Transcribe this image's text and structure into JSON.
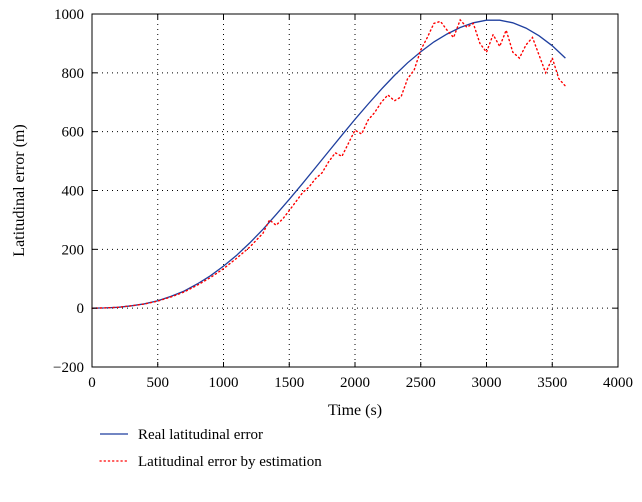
{
  "chart_data": {
    "type": "line",
    "xlabel": "Time (s)",
    "ylabel": "Latitudinal error (m)",
    "xlim": [
      0,
      4000
    ],
    "ylim": [
      -200,
      1000
    ],
    "x_ticks": [
      "0",
      "500",
      "1000",
      "1500",
      "2000",
      "2500",
      "3000",
      "3500",
      "4000"
    ],
    "y_ticks": [
      "−200",
      "0",
      "200",
      "400",
      "600",
      "800",
      "1000"
    ],
    "grid": true,
    "legend_position": "bottom",
    "series": [
      {
        "name": "Real latitudinal error",
        "style": "solid",
        "color": "#1f3f9f",
        "points": [
          [
            0,
            0
          ],
          [
            100,
            1
          ],
          [
            200,
            3
          ],
          [
            300,
            8
          ],
          [
            400,
            15
          ],
          [
            500,
            25
          ],
          [
            600,
            40
          ],
          [
            700,
            58
          ],
          [
            800,
            82
          ],
          [
            900,
            110
          ],
          [
            1000,
            143
          ],
          [
            1100,
            180
          ],
          [
            1200,
            222
          ],
          [
            1300,
            268
          ],
          [
            1400,
            318
          ],
          [
            1500,
            370
          ],
          [
            1600,
            423
          ],
          [
            1700,
            478
          ],
          [
            1800,
            533
          ],
          [
            1900,
            588
          ],
          [
            2000,
            642
          ],
          [
            2100,
            694
          ],
          [
            2200,
            744
          ],
          [
            2300,
            791
          ],
          [
            2400,
            834
          ],
          [
            2500,
            872
          ],
          [
            2600,
            905
          ],
          [
            2700,
            932
          ],
          [
            2800,
            954
          ],
          [
            2900,
            970
          ],
          [
            3000,
            979
          ],
          [
            3100,
            979
          ],
          [
            3200,
            970
          ],
          [
            3300,
            952
          ],
          [
            3400,
            926
          ],
          [
            3500,
            892
          ],
          [
            3600,
            850
          ]
        ]
      },
      {
        "name": "Latitudinal error by estimation",
        "style": "dotted",
        "color": "#ff0000",
        "points": [
          [
            0,
            0
          ],
          [
            100,
            1
          ],
          [
            200,
            3
          ],
          [
            300,
            8
          ],
          [
            400,
            14
          ],
          [
            500,
            24
          ],
          [
            600,
            38
          ],
          [
            700,
            55
          ],
          [
            800,
            78
          ],
          [
            900,
            104
          ],
          [
            1000,
            134
          ],
          [
            1100,
            170
          ],
          [
            1200,
            208
          ],
          [
            1300,
            255
          ],
          [
            1350,
            300
          ],
          [
            1400,
            282
          ],
          [
            1450,
            303
          ],
          [
            1500,
            332
          ],
          [
            1600,
            392
          ],
          [
            1650,
            412
          ],
          [
            1700,
            440
          ],
          [
            1750,
            460
          ],
          [
            1800,
            498
          ],
          [
            1850,
            528
          ],
          [
            1900,
            516
          ],
          [
            1950,
            560
          ],
          [
            2000,
            605
          ],
          [
            2050,
            592
          ],
          [
            2100,
            640
          ],
          [
            2150,
            665
          ],
          [
            2200,
            700
          ],
          [
            2250,
            725
          ],
          [
            2300,
            705
          ],
          [
            2350,
            718
          ],
          [
            2400,
            780
          ],
          [
            2450,
            810
          ],
          [
            2500,
            878
          ],
          [
            2550,
            920
          ],
          [
            2600,
            968
          ],
          [
            2650,
            975
          ],
          [
            2700,
            945
          ],
          [
            2750,
            920
          ],
          [
            2800,
            980
          ],
          [
            2850,
            955
          ],
          [
            2900,
            968
          ],
          [
            2950,
            900
          ],
          [
            3000,
            870
          ],
          [
            3050,
            930
          ],
          [
            3100,
            890
          ],
          [
            3150,
            945
          ],
          [
            3200,
            870
          ],
          [
            3250,
            850
          ],
          [
            3300,
            895
          ],
          [
            3350,
            920
          ],
          [
            3400,
            860
          ],
          [
            3450,
            800
          ],
          [
            3500,
            850
          ],
          [
            3550,
            780
          ],
          [
            3600,
            755
          ]
        ]
      }
    ]
  }
}
